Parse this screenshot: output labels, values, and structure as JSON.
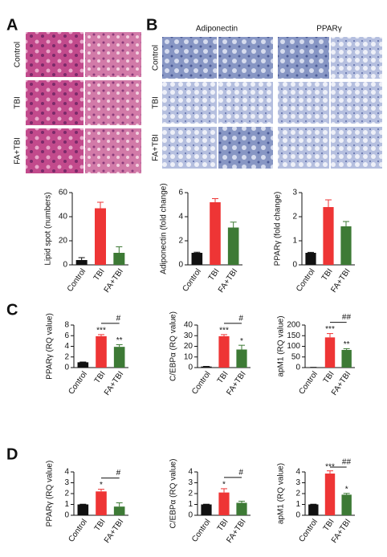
{
  "panels": [
    {
      "letter": "A"
    },
    {
      "letter": "B"
    },
    {
      "letter": "C"
    },
    {
      "letter": "D"
    }
  ],
  "row_labels": [
    "Control",
    "TBI",
    "FA+TBI"
  ],
  "column_labels": [
    "Adiponectin",
    "PPARγ"
  ],
  "chart_data": [
    {
      "type": "bar",
      "ylabel": "Lipid spot (numbers)",
      "categories": [
        "Control",
        "TBI",
        "FA+TBI"
      ],
      "values": [
        4,
        47,
        10
      ],
      "errors": [
        2,
        5,
        5
      ],
      "colors": [
        "#111111",
        "#ee3535",
        "#3d7a35"
      ],
      "ylim": [
        0,
        60
      ],
      "yticks": [
        0,
        20,
        40,
        60
      ]
    },
    {
      "type": "bar",
      "ylabel": "Adiponectin (fold change)",
      "categories": [
        "Control",
        "TBI",
        "FA+TBI"
      ],
      "values": [
        1,
        5.2,
        3.1
      ],
      "errors": [
        0.05,
        0.3,
        0.45
      ],
      "colors": [
        "#111111",
        "#ee3535",
        "#3d7a35"
      ],
      "ylim": [
        0,
        6
      ],
      "yticks": [
        0,
        2,
        4,
        6
      ]
    },
    {
      "type": "bar",
      "ylabel": "PPARγ (fold change)",
      "categories": [
        "Control",
        "TBI",
        "FA+TBI"
      ],
      "values": [
        0.5,
        2.4,
        1.6
      ],
      "errors": [
        0.02,
        0.3,
        0.2
      ],
      "colors": [
        "#111111",
        "#ee3535",
        "#3d7a35"
      ],
      "ylim": [
        0,
        3
      ],
      "yticks": [
        0,
        1,
        2,
        3
      ]
    },
    {
      "type": "bar",
      "ylabel": "PPARγ (RQ value)",
      "categories": [
        "Control",
        "TBI",
        "FA+TBI"
      ],
      "values": [
        1,
        5.9,
        3.9
      ],
      "errors": [
        0.05,
        0.3,
        0.4
      ],
      "colors": [
        "#111111",
        "#ee3535",
        "#3d7a35"
      ],
      "ylim": [
        0,
        8
      ],
      "yticks": [
        0,
        2,
        4,
        6,
        8
      ],
      "significance": [
        null,
        "***",
        "**"
      ],
      "comparison": "#"
    },
    {
      "type": "bar",
      "ylabel": "C/EBPα (RQ value)",
      "categories": [
        "Control",
        "TBI",
        "FA+TBI"
      ],
      "values": [
        1,
        29.5,
        17
      ],
      "errors": [
        0.1,
        1.5,
        4
      ],
      "colors": [
        "#111111",
        "#ee3535",
        "#3d7a35"
      ],
      "ylim": [
        0,
        40
      ],
      "yticks": [
        0,
        10,
        20,
        30,
        40
      ],
      "significance": [
        null,
        "***",
        "*"
      ],
      "comparison": "#"
    },
    {
      "type": "bar",
      "ylabel": "apM1 (RQ value)",
      "categories": [
        "Control",
        "TBI",
        "FA+TBI"
      ],
      "values": [
        1,
        142,
        83
      ],
      "errors": [
        0.2,
        18,
        6
      ],
      "colors": [
        "#111111",
        "#ee3535",
        "#3d7a35"
      ],
      "ylim": [
        0,
        200
      ],
      "yticks": [
        0,
        50,
        100,
        150,
        200
      ],
      "significance": [
        null,
        "***",
        "**"
      ],
      "comparison": "##"
    },
    {
      "type": "bar",
      "ylabel": "PPARγ (RQ value)",
      "categories": [
        "Control",
        "TBI",
        "FA+TBI"
      ],
      "values": [
        1,
        2.2,
        0.8
      ],
      "errors": [
        0.02,
        0.2,
        0.35
      ],
      "colors": [
        "#111111",
        "#ee3535",
        "#3d7a35"
      ],
      "ylim": [
        0,
        4
      ],
      "yticks": [
        0,
        1,
        2,
        3,
        4
      ],
      "significance": [
        null,
        "*",
        null
      ],
      "comparison": "#"
    },
    {
      "type": "bar",
      "ylabel": "C/EBPα (RQ value)",
      "categories": [
        "Control",
        "TBI",
        "FA+TBI"
      ],
      "values": [
        1,
        2.1,
        1.15
      ],
      "errors": [
        0.02,
        0.35,
        0.15
      ],
      "colors": [
        "#111111",
        "#ee3535",
        "#3d7a35"
      ],
      "ylim": [
        0,
        4
      ],
      "yticks": [
        0,
        1,
        2,
        3,
        4
      ],
      "significance": [
        null,
        "*",
        null
      ],
      "comparison": "#"
    },
    {
      "type": "bar",
      "ylabel": "apM1 (RQ value)",
      "categories": [
        "Control",
        "TBI",
        "FA+TBI"
      ],
      "values": [
        1,
        3.85,
        1.9
      ],
      "errors": [
        0.02,
        0.25,
        0.12
      ],
      "colors": [
        "#111111",
        "#ee3535",
        "#3d7a35"
      ],
      "ylim": [
        0,
        4
      ],
      "yticks": [
        0,
        1,
        2,
        3,
        4
      ],
      "significance": [
        null,
        "***",
        "*"
      ],
      "comparison": "##"
    }
  ]
}
